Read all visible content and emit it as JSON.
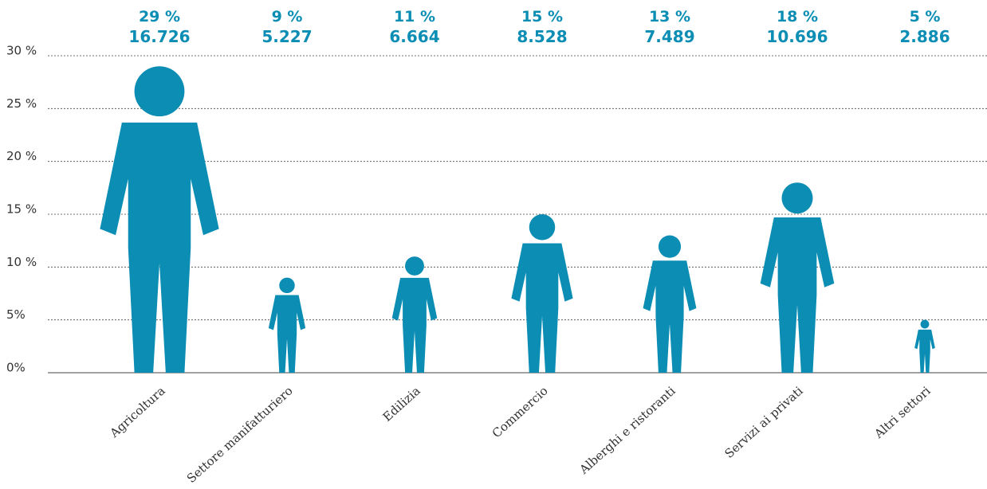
{
  "chart_data": {
    "type": "pictogram",
    "categories": [
      "Agricoltura",
      "Settore manifatturiero",
      "Edilizia",
      "Commercio",
      "Alberghi e ristoranti",
      "Servizi ai privati",
      "Altri settori"
    ],
    "values": [
      29,
      9,
      11,
      15,
      13,
      18,
      5
    ],
    "value_labels": [
      "29 %",
      "9 %",
      "11 %",
      "15 %",
      "13 %",
      "18 %",
      "5 %"
    ],
    "counts": [
      16726,
      5227,
      6664,
      8528,
      7489,
      10696,
      2886
    ],
    "count_labels": [
      "16.726",
      "5.227",
      "6.664",
      "8.528",
      "7.489",
      "10.696",
      "2.886"
    ],
    "color": "#0b8db4",
    "ylim": [
      0,
      30
    ],
    "yticks": [
      {
        "value": 0,
        "label": "0%"
      },
      {
        "value": 5,
        "label": "5%"
      },
      {
        "value": 10,
        "label": "10 %"
      },
      {
        "value": 15,
        "label": "15 %"
      },
      {
        "value": 20,
        "label": "20 %"
      },
      {
        "value": 25,
        "label": "25 %"
      },
      {
        "value": 30,
        "label": "30 %"
      }
    ],
    "grid": true
  }
}
